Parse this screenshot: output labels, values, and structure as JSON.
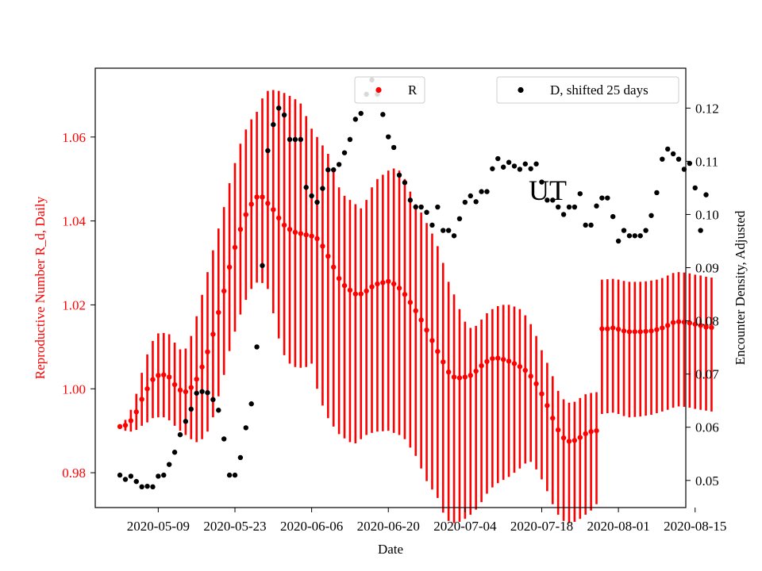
{
  "chart_data": {
    "type": "scatter",
    "title": "",
    "annotation": "UT",
    "xlabel": "Date",
    "ylabel_left": "Reproductive Number R_d, Daily",
    "ylabel_right": "Encounter Density, Adjusted",
    "ylim_left": [
      0.9717,
      1.0764
    ],
    "ylim_right": [
      0.0449,
      0.1275
    ],
    "xlim_day_index": [
      -4.5,
      103.3
    ],
    "x_ticks": [
      {
        "label": "2020-05-09",
        "day": 7
      },
      {
        "label": "2020-05-23",
        "day": 21
      },
      {
        "label": "2020-06-06",
        "day": 35
      },
      {
        "label": "2020-06-20",
        "day": 49
      },
      {
        "label": "2020-07-04",
        "day": 63
      },
      {
        "label": "2020-07-18",
        "day": 77
      },
      {
        "label": "2020-08-01",
        "day": 91
      },
      {
        "label": "2020-08-15",
        "day": 105
      }
    ],
    "y_ticks_left": [
      0.98,
      1.0,
      1.02,
      1.04,
      1.06
    ],
    "y_ticks_right": [
      0.05,
      0.06,
      0.07,
      0.08,
      0.09,
      0.1,
      0.11,
      0.12
    ],
    "colors": {
      "r": "#ff0000",
      "d": "#000000",
      "axis": "#000000"
    },
    "legend": {
      "r": {
        "label": "R",
        "position": "upper-center"
      },
      "d": {
        "label": "D, shifted 25 days",
        "position": "top-right"
      }
    },
    "series_r": {
      "name": "R",
      "axis": "left",
      "start_day": 0,
      "values": [
        0.991,
        0.9913,
        0.9924,
        0.9945,
        0.9975,
        1.0,
        1.0022,
        1.0032,
        1.0033,
        1.0028,
        1.001,
        0.9997,
        0.9993,
        1.0003,
        1.0023,
        1.0052,
        1.0088,
        1.013,
        1.0182,
        1.0233,
        1.029,
        1.0337,
        1.038,
        1.0415,
        1.044,
        1.0457,
        1.0457,
        1.0442,
        1.0427,
        1.0407,
        1.039,
        1.038,
        1.0373,
        1.037,
        1.0367,
        1.0364,
        1.0358,
        1.034,
        1.0316,
        1.029,
        1.0263,
        1.0246,
        1.0235,
        1.0226,
        1.0226,
        1.0233,
        1.0243,
        1.025,
        1.0253,
        1.0256,
        1.025,
        1.024,
        1.0225,
        1.0206,
        1.0186,
        1.0164,
        1.014,
        1.0115,
        1.0089,
        1.0064,
        1.004,
        1.0028,
        1.0026,
        1.0028,
        1.0032,
        1.0042,
        1.0055,
        1.0065,
        1.0072,
        1.0073,
        1.007,
        1.0066,
        1.006,
        1.0053,
        1.0044,
        1.003,
        1.0012,
        0.9988,
        0.996,
        0.993,
        0.9902,
        0.9883,
        0.9875,
        0.9877,
        0.9884,
        0.9893,
        0.9898,
        0.99,
        1.0143,
        1.0143,
        1.0145,
        1.0142,
        1.0138,
        1.0136,
        1.0136,
        1.0136,
        1.0137,
        1.0138,
        1.0141,
        1.0145,
        1.0151,
        1.0158,
        1.016,
        1.0159,
        1.0157,
        1.0154,
        1.0151,
        1.0147,
        1.0146
      ],
      "lower": [
        0.9905,
        0.99,
        0.9898,
        0.9902,
        0.9912,
        0.992,
        0.993,
        0.9932,
        0.9932,
        0.9925,
        0.9912,
        0.99,
        0.989,
        0.988,
        0.9873,
        0.988,
        0.9898,
        0.9932,
        0.9982,
        1.0033,
        1.009,
        1.0136,
        1.0177,
        1.0212,
        1.0238,
        1.0253,
        1.0252,
        1.0238,
        1.018,
        1.012,
        1.008,
        1.006,
        1.0052,
        1.005,
        1.0052,
        1.006,
        1.0,
        0.996,
        0.993,
        0.991,
        0.9892,
        0.9882,
        0.9873,
        0.987,
        0.988,
        0.989,
        0.9895,
        0.9898,
        0.9899,
        0.99,
        0.9895,
        0.989,
        0.988,
        0.986,
        0.984,
        0.981,
        0.978,
        0.976,
        0.974,
        0.9705,
        0.9685,
        0.968,
        0.9683,
        0.969,
        0.97,
        0.9712,
        0.973,
        0.975,
        0.9765,
        0.9775,
        0.9783,
        0.979,
        0.98,
        0.981,
        0.9822,
        0.9826,
        0.9808,
        0.9784,
        0.9756,
        0.9725,
        0.97,
        0.9685,
        0.968,
        0.9683,
        0.969,
        0.97,
        0.971,
        0.9725,
        0.994,
        0.9942,
        0.9943,
        0.994,
        0.9935,
        0.9932,
        0.9933,
        0.9934,
        0.9936,
        0.9938,
        0.9942,
        0.9946,
        0.995,
        0.9955,
        0.9958,
        0.9957,
        0.9955,
        0.9952,
        0.995,
        0.9948,
        0.9946
      ],
      "upper": [
        0.9914,
        0.9926,
        0.995,
        0.9988,
        1.0038,
        1.0082,
        1.0114,
        1.0132,
        1.0133,
        1.013,
        1.011,
        1.0094,
        1.0096,
        1.0126,
        1.0173,
        1.0224,
        1.0278,
        1.033,
        1.0382,
        1.0433,
        1.049,
        1.0538,
        1.0584,
        1.0618,
        1.0642,
        1.066,
        1.0692,
        1.071,
        1.0712,
        1.071,
        1.0705,
        1.0698,
        1.069,
        1.068,
        1.065,
        1.062,
        1.06,
        1.058,
        1.056,
        1.052,
        1.048,
        1.046,
        1.045,
        1.044,
        1.043,
        1.045,
        1.048,
        1.05,
        1.051,
        1.052,
        1.0525,
        1.052,
        1.05,
        1.047,
        1.044,
        1.042,
        1.0395,
        1.037,
        1.034,
        1.03,
        1.0255,
        1.0225,
        1.019,
        1.016,
        1.0145,
        1.015,
        1.0165,
        1.018,
        1.019,
        1.0197,
        1.02,
        1.02,
        1.0196,
        1.019,
        1.0175,
        1.0154,
        1.0126,
        1.0092,
        1.0062,
        1.003,
        0.9995,
        0.9975,
        0.9967,
        0.9969,
        0.9978,
        0.9987,
        0.999,
        0.9992,
        1.026,
        1.0261,
        1.0262,
        1.026,
        1.0257,
        1.0255,
        1.0255,
        1.0255,
        1.0256,
        1.0258,
        1.026,
        1.0264,
        1.027,
        1.0276,
        1.0278,
        1.0277,
        1.0275,
        1.0272,
        1.027,
        1.0267,
        1.0265
      ]
    },
    "series_d": {
      "name": "D, shifted 25 days",
      "axis": "right",
      "points": [
        [
          0,
          0.051
        ],
        [
          1,
          0.0502
        ],
        [
          2,
          0.0508
        ],
        [
          3,
          0.0498
        ],
        [
          4,
          0.0488
        ],
        [
          5,
          0.0489
        ],
        [
          6,
          0.0488
        ],
        [
          7,
          0.0508
        ],
        [
          8,
          0.051
        ],
        [
          9,
          0.053
        ],
        [
          10,
          0.0553
        ],
        [
          11,
          0.0586
        ],
        [
          12,
          0.0611
        ],
        [
          13,
          0.0634
        ],
        [
          14,
          0.0664
        ],
        [
          15,
          0.0667
        ],
        [
          16,
          0.0665
        ],
        [
          17,
          0.0652
        ],
        [
          18,
          0.0632
        ],
        [
          19,
          0.0578
        ],
        [
          20,
          0.051
        ],
        [
          21,
          0.051
        ],
        [
          22,
          0.0543
        ],
        [
          23,
          0.0599
        ],
        [
          24,
          0.0644
        ],
        [
          25,
          0.0751
        ],
        [
          26,
          0.0904
        ],
        [
          27,
          0.112
        ],
        [
          28,
          0.1169
        ],
        [
          29,
          0.12
        ],
        [
          30,
          0.1187
        ],
        [
          31,
          0.1141
        ],
        [
          32,
          0.1141
        ],
        [
          33,
          0.1141
        ],
        [
          34,
          0.1051
        ],
        [
          35,
          0.1035
        ],
        [
          36,
          0.1023
        ],
        [
          37,
          0.1049
        ],
        [
          38,
          0.1084
        ],
        [
          39,
          0.1084
        ],
        [
          40,
          0.1094
        ],
        [
          41,
          0.1116
        ],
        [
          42,
          0.1141
        ],
        [
          43,
          0.1179
        ],
        [
          44,
          0.119
        ],
        [
          45,
          0.1226
        ],
        [
          46,
          0.1253
        ],
        [
          47,
          0.1226
        ],
        [
          48,
          0.1188
        ],
        [
          49,
          0.1146
        ],
        [
          50,
          0.1126
        ],
        [
          51,
          0.1074
        ],
        [
          52,
          0.106
        ],
        [
          53,
          0.1027
        ],
        [
          54,
          0.1014
        ],
        [
          55,
          0.1014
        ],
        [
          56,
          0.1004
        ],
        [
          57,
          0.098
        ],
        [
          58,
          0.1014
        ],
        [
          59,
          0.097
        ],
        [
          60,
          0.097
        ],
        [
          61,
          0.096
        ],
        [
          62,
          0.0992
        ],
        [
          63,
          0.1023
        ],
        [
          64,
          0.1035
        ],
        [
          65,
          0.1024
        ],
        [
          66,
          0.1043
        ],
        [
          67,
          0.1043
        ],
        [
          68,
          0.1086
        ],
        [
          69,
          0.1105
        ],
        [
          70,
          0.1089
        ],
        [
          71,
          0.1098
        ],
        [
          72,
          0.1091
        ],
        [
          73,
          0.1085
        ],
        [
          74,
          0.1095
        ],
        [
          75,
          0.1086
        ],
        [
          76,
          0.1095
        ],
        [
          77,
          0.1061
        ],
        [
          78,
          0.1027
        ],
        [
          79,
          0.1027
        ],
        [
          80,
          0.1014
        ],
        [
          81,
          0.1
        ],
        [
          82,
          0.1014
        ],
        [
          83,
          0.1014
        ],
        [
          84,
          0.1039
        ],
        [
          85,
          0.098
        ],
        [
          86,
          0.098
        ],
        [
          87,
          0.1016
        ],
        [
          88,
          0.1031
        ],
        [
          89,
          0.1031
        ],
        [
          90,
          0.0996
        ],
        [
          91,
          0.095
        ],
        [
          92,
          0.097
        ],
        [
          93,
          0.096
        ],
        [
          94,
          0.096
        ],
        [
          95,
          0.096
        ],
        [
          96,
          0.097
        ],
        [
          97,
          0.0998
        ],
        [
          98,
          0.1041
        ],
        [
          99,
          0.1104
        ],
        [
          100,
          0.1123
        ],
        [
          101,
          0.1114
        ],
        [
          102,
          0.1104
        ],
        [
          103,
          0.1085
        ],
        [
          104,
          0.1096
        ],
        [
          105,
          0.105
        ],
        [
          106,
          0.097
        ],
        [
          107,
          0.1037
        ]
      ]
    }
  }
}
